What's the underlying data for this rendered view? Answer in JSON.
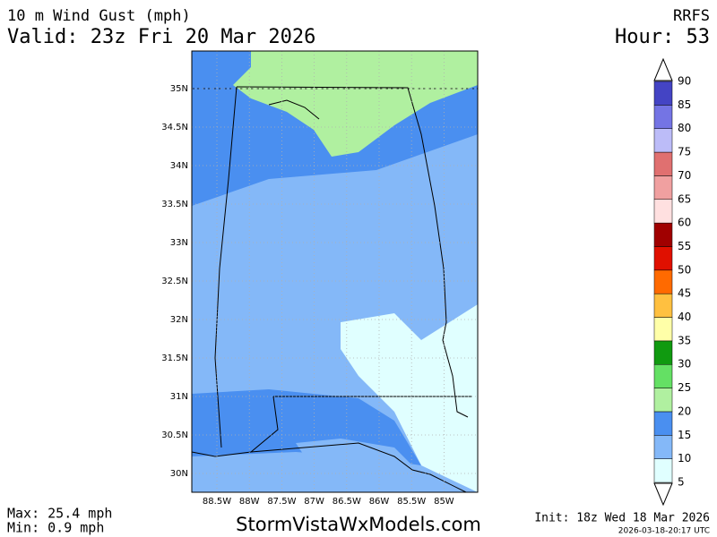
{
  "header": {
    "title": "10 m Wind Gust (mph)",
    "valid": "Valid: 23z Fri 20 Mar 2026",
    "model": "RRFS",
    "hour": "Hour: 53"
  },
  "map": {
    "lat_labels": [
      "35N",
      "34.5N",
      "34N",
      "33.5N",
      "33N",
      "32.5N",
      "32N",
      "31.5N",
      "31N",
      "30.5N",
      "30N"
    ],
    "lon_labels": [
      "88.5W",
      "88W",
      "87.5W",
      "87W",
      "86.5W",
      "86W",
      "85.5W",
      "85W"
    ]
  },
  "colorbar": {
    "levels": [
      5,
      10,
      15,
      20,
      25,
      30,
      35,
      40,
      45,
      50,
      55,
      60,
      65,
      70,
      75,
      80,
      85,
      90
    ],
    "colors": [
      "#e0ffff",
      "#84b8f8",
      "#4a8ff0",
      "#b0f0a0",
      "#64e064",
      "#109a10",
      "#ffffa8",
      "#ffc040",
      "#ff6a00",
      "#e01000",
      "#a00000",
      "#ffe0e0",
      "#f0a0a0",
      "#e07070",
      "#bcbcf8",
      "#7474e4",
      "#4444c4"
    ]
  },
  "footer": {
    "max": "Max: 25.4 mph",
    "min": "Min: 0.9 mph",
    "site": "StormVistaWxModels.com",
    "init": "Init: 18z Wed 18 Mar 2026",
    "stamp": "2026-03-18-20:17 UTC"
  }
}
